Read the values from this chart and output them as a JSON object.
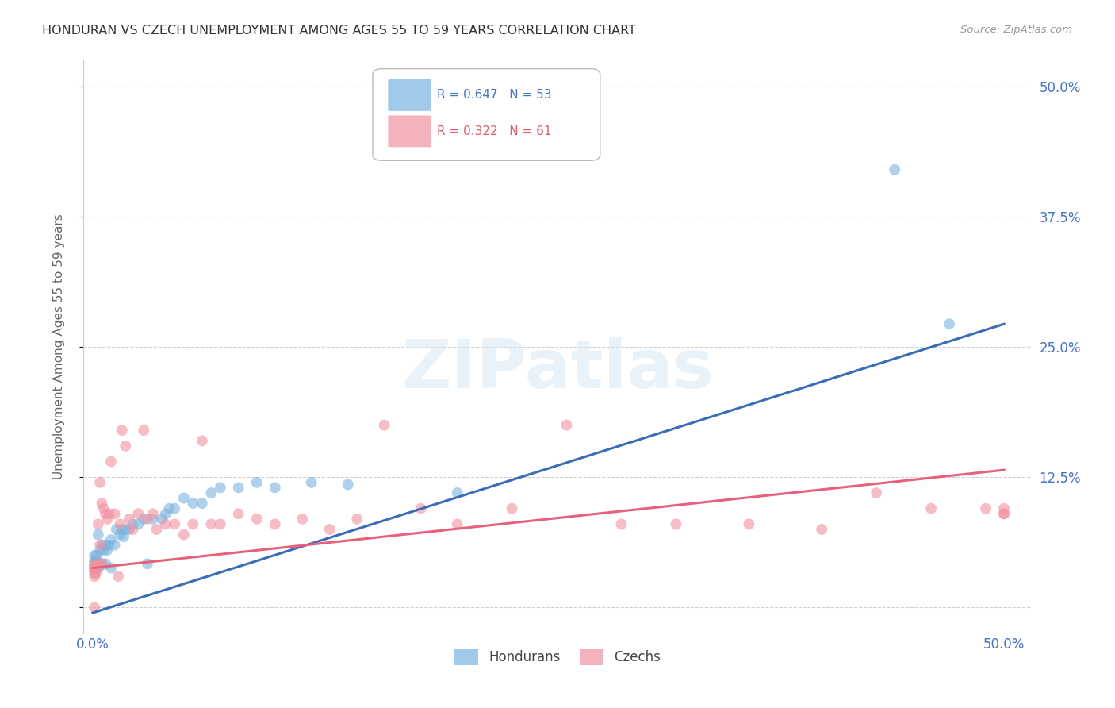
{
  "title": "HONDURAN VS CZECH UNEMPLOYMENT AMONG AGES 55 TO 59 YEARS CORRELATION CHART",
  "source": "Source: ZipAtlas.com",
  "ylabel": "Unemployment Among Ages 55 to 59 years",
  "xlim": [
    -0.005,
    0.515
  ],
  "ylim": [
    -0.025,
    0.525
  ],
  "xtick_positions": [
    0.0,
    0.125,
    0.25,
    0.375,
    0.5
  ],
  "xtick_labels": [
    "0.0%",
    "",
    "",
    "",
    "50.0%"
  ],
  "ytick_positions": [
    0.0,
    0.125,
    0.25,
    0.375,
    0.5
  ],
  "ytick_labels_right": [
    "",
    "12.5%",
    "25.0%",
    "37.5%",
    "50.0%"
  ],
  "background_color": "#ffffff",
  "grid_color": "#d0d0d0",
  "blue_color": "#7ab3e0",
  "pink_color": "#f092a0",
  "blue_line_color": "#3a6db5",
  "pink_line_color": "#e8607a",
  "blue_R": 0.647,
  "blue_N": 53,
  "pink_R": 0.322,
  "pink_N": 61,
  "blue_label": "Hondurans",
  "pink_label": "Czechs",
  "blue_trend_start_y": -0.005,
  "blue_trend_end_y": 0.272,
  "pink_trend_start_y": 0.038,
  "pink_trend_end_y": 0.132,
  "blue_scatter_x": [
    0.001,
    0.001,
    0.001,
    0.001,
    0.001,
    0.001,
    0.002,
    0.002,
    0.002,
    0.002,
    0.003,
    0.003,
    0.003,
    0.004,
    0.004,
    0.005,
    0.005,
    0.006,
    0.007,
    0.007,
    0.008,
    0.009,
    0.01,
    0.01,
    0.012,
    0.013,
    0.015,
    0.016,
    0.017,
    0.018,
    0.02,
    0.022,
    0.025,
    0.028,
    0.03,
    0.033,
    0.038,
    0.04,
    0.042,
    0.045,
    0.05,
    0.055,
    0.06,
    0.065,
    0.07,
    0.08,
    0.09,
    0.1,
    0.12,
    0.14,
    0.2,
    0.44,
    0.47
  ],
  "blue_scatter_y": [
    0.035,
    0.038,
    0.04,
    0.042,
    0.045,
    0.05,
    0.038,
    0.042,
    0.045,
    0.05,
    0.038,
    0.042,
    0.07,
    0.04,
    0.055,
    0.042,
    0.06,
    0.055,
    0.042,
    0.06,
    0.055,
    0.06,
    0.038,
    0.065,
    0.06,
    0.075,
    0.07,
    0.075,
    0.068,
    0.075,
    0.075,
    0.08,
    0.08,
    0.085,
    0.042,
    0.085,
    0.085,
    0.09,
    0.095,
    0.095,
    0.105,
    0.1,
    0.1,
    0.11,
    0.115,
    0.115,
    0.12,
    0.115,
    0.12,
    0.118,
    0.11,
    0.42,
    0.272
  ],
  "pink_scatter_x": [
    0.001,
    0.001,
    0.001,
    0.001,
    0.001,
    0.001,
    0.002,
    0.002,
    0.002,
    0.002,
    0.003,
    0.003,
    0.004,
    0.004,
    0.005,
    0.005,
    0.006,
    0.007,
    0.008,
    0.009,
    0.01,
    0.012,
    0.014,
    0.015,
    0.016,
    0.018,
    0.02,
    0.022,
    0.025,
    0.028,
    0.03,
    0.033,
    0.035,
    0.04,
    0.045,
    0.05,
    0.055,
    0.06,
    0.065,
    0.07,
    0.08,
    0.09,
    0.1,
    0.115,
    0.13,
    0.145,
    0.16,
    0.18,
    0.2,
    0.23,
    0.26,
    0.29,
    0.32,
    0.36,
    0.4,
    0.43,
    0.46,
    0.49,
    0.5,
    0.5,
    0.5
  ],
  "pink_scatter_y": [
    0.03,
    0.033,
    0.036,
    0.038,
    0.04,
    0.0,
    0.033,
    0.038,
    0.04,
    0.042,
    0.04,
    0.08,
    0.06,
    0.12,
    0.042,
    0.1,
    0.095,
    0.09,
    0.085,
    0.09,
    0.14,
    0.09,
    0.03,
    0.08,
    0.17,
    0.155,
    0.085,
    0.075,
    0.09,
    0.17,
    0.085,
    0.09,
    0.075,
    0.08,
    0.08,
    0.07,
    0.08,
    0.16,
    0.08,
    0.08,
    0.09,
    0.085,
    0.08,
    0.085,
    0.075,
    0.085,
    0.175,
    0.095,
    0.08,
    0.095,
    0.175,
    0.08,
    0.08,
    0.08,
    0.075,
    0.11,
    0.095,
    0.095,
    0.09,
    0.095,
    0.09
  ]
}
